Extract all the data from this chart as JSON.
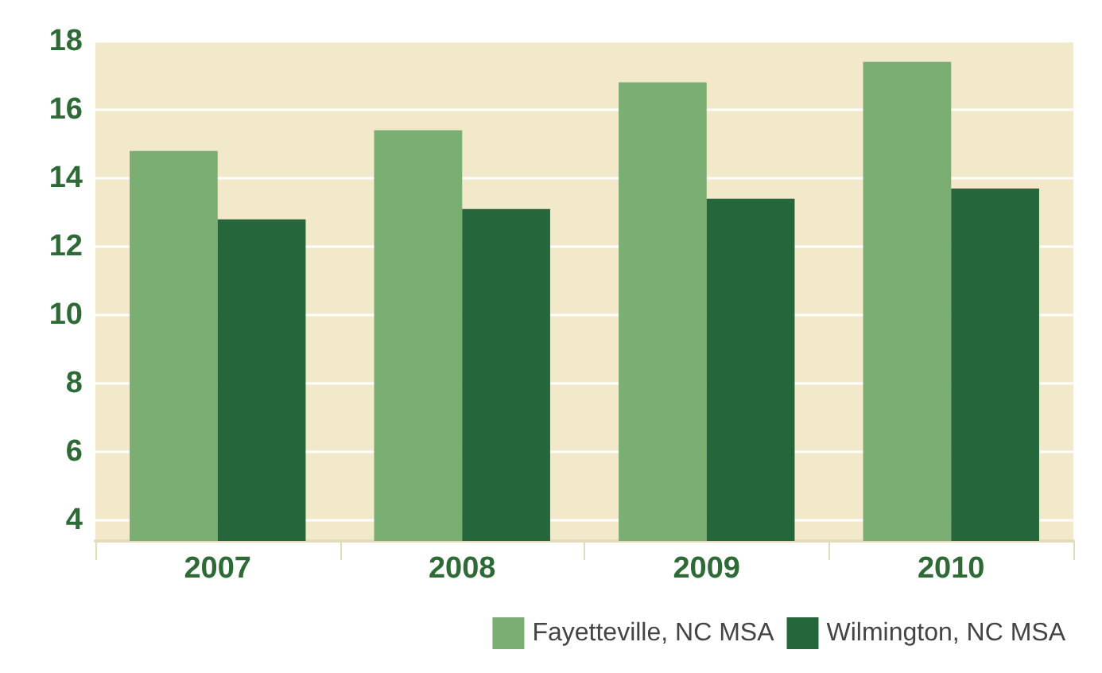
{
  "chart_data": {
    "type": "bar",
    "categories": [
      "2007",
      "2008",
      "2009",
      "2010"
    ],
    "series": [
      {
        "name": "Fayetteville, NC MSA",
        "color": "#7aae72",
        "values": [
          14.8,
          15.4,
          16.8,
          17.4
        ]
      },
      {
        "name": "Wilmington, NC MSA",
        "color": "#25663a",
        "values": [
          12.8,
          13.1,
          13.4,
          13.7
        ]
      }
    ],
    "ylim": [
      3.4,
      18
    ],
    "yticks": [
      4,
      6,
      8,
      10,
      12,
      14,
      16,
      18
    ],
    "grid": "y",
    "legend": "bottom right"
  }
}
